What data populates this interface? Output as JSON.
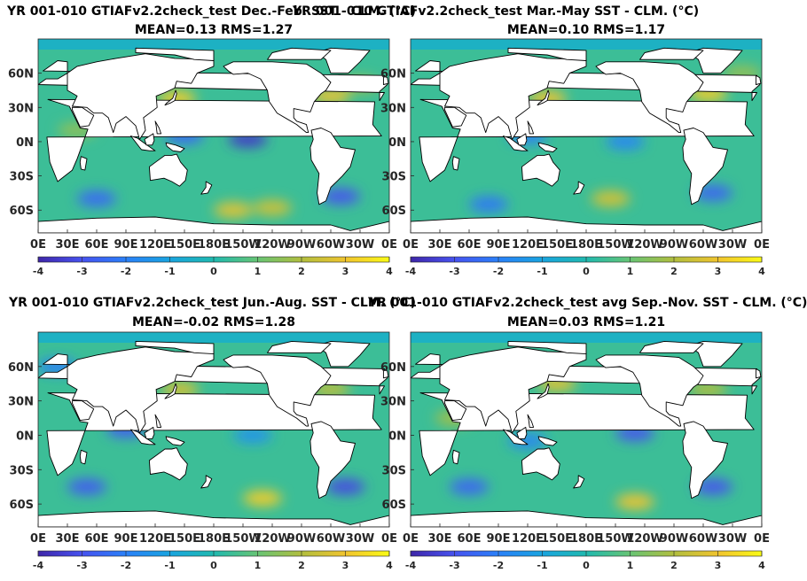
{
  "chart_data": [
    {
      "type": "heatmap",
      "title": "YR 001-010 GTIAFv2.2check_test  Dec.-Feb. SST - CLM. (°C)",
      "subtitle": "MEAN=0.13   RMS=1.27",
      "x_ticks": [
        "0E",
        "30E",
        "60E",
        "90E",
        "120E",
        "150E",
        "180E",
        "150W",
        "120W",
        "90W",
        "60W",
        "30W",
        "0E"
      ],
      "y_ticks": [
        "60N",
        "30N",
        "0N",
        "30S",
        "60S"
      ],
      "colorbar": {
        "min": -4,
        "max": 4,
        "ticks": [
          "-4",
          "-3",
          "-2",
          "-1",
          "0",
          "1",
          "2",
          "3",
          "4"
        ]
      },
      "colors": {
        "neg": "#3d2ea0",
        "mid": "#27a6b5",
        "pos": "#f5df2a"
      },
      "features": [
        {
          "lon": 215,
          "lat": 2,
          "value": -3.6
        },
        {
          "lon": 150,
          "lat": 5,
          "value": -2.5
        },
        {
          "lon": 142,
          "lat": 38,
          "value": 3.2
        },
        {
          "lon": 300,
          "lat": 40,
          "value": 3.0
        },
        {
          "lon": 330,
          "lat": 50,
          "value": 1.8
        },
        {
          "lon": 200,
          "lat": -60,
          "value": 2.8
        },
        {
          "lon": 240,
          "lat": -58,
          "value": 2.5
        },
        {
          "lon": 60,
          "lat": -50,
          "value": -2.5
        },
        {
          "lon": 310,
          "lat": -48,
          "value": -3.0
        },
        {
          "lon": 40,
          "lat": 10,
          "value": 1.5
        }
      ]
    },
    {
      "type": "heatmap",
      "title": "YR 001-010 GTIAFv2.2check_test Mar.-May SST - CLM. (°C)",
      "subtitle": "MEAN=0.10   RMS=1.17",
      "x_ticks": [
        "0E",
        "30E",
        "60E",
        "90E",
        "120E",
        "150E",
        "180E",
        "150W",
        "120W",
        "90W",
        "60W",
        "30W",
        "0E"
      ],
      "y_ticks": [
        "60N",
        "30N",
        "0N",
        "30S",
        "60S"
      ],
      "colorbar": {
        "min": -4,
        "max": 4,
        "ticks": [
          "-4",
          "-3",
          "-2",
          "-1",
          "0",
          "1",
          "2",
          "3",
          "4"
        ]
      },
      "colors": {
        "neg": "#3d2ea0",
        "mid": "#27a6b5",
        "pos": "#f5df2a"
      },
      "features": [
        {
          "lon": 140,
          "lat": 38,
          "value": 3.0
        },
        {
          "lon": 305,
          "lat": 42,
          "value": 3.2
        },
        {
          "lon": 220,
          "lat": 0,
          "value": -1.8
        },
        {
          "lon": 205,
          "lat": -50,
          "value": 2.6
        },
        {
          "lon": 80,
          "lat": -55,
          "value": -2.2
        },
        {
          "lon": 310,
          "lat": -45,
          "value": -2.6
        },
        {
          "lon": 120,
          "lat": 5,
          "value": -2.0
        },
        {
          "lon": 340,
          "lat": 60,
          "value": 1.6
        }
      ]
    },
    {
      "type": "heatmap",
      "title": "YR 001-010 GTIAFv2.2check_test Jun.-Aug. SST - CLM. (°C)",
      "subtitle": "MEAN=-0.02   RMS=1.28",
      "x_ticks": [
        "0E",
        "30E",
        "60E",
        "90E",
        "120E",
        "150E",
        "180E",
        "150W",
        "120W",
        "90W",
        "60W",
        "30W",
        "0E"
      ],
      "y_ticks": [
        "60N",
        "30N",
        "0N",
        "30S",
        "60S"
      ],
      "colorbar": {
        "min": -4,
        "max": 4,
        "ticks": [
          "-4",
          "-3",
          "-2",
          "-1",
          "0",
          "1",
          "2",
          "3",
          "4"
        ]
      },
      "colors": {
        "neg": "#3d2ea0",
        "mid": "#27a6b5",
        "pos": "#f5df2a"
      },
      "features": [
        {
          "lon": 145,
          "lat": 40,
          "value": 2.6
        },
        {
          "lon": 230,
          "lat": -55,
          "value": 3.2
        },
        {
          "lon": 90,
          "lat": 5,
          "value": -2.8
        },
        {
          "lon": 50,
          "lat": -45,
          "value": -2.8
        },
        {
          "lon": 315,
          "lat": -45,
          "value": -3.2
        },
        {
          "lon": 300,
          "lat": 40,
          "value": 2.2
        },
        {
          "lon": 220,
          "lat": 0,
          "value": -1.5
        },
        {
          "lon": 20,
          "lat": 60,
          "value": -2.0
        }
      ]
    },
    {
      "type": "heatmap",
      "title": "YR 001-010 GTIAFv2.2check_test avg Sep.-Nov. SST - CLM. (°C)",
      "subtitle": "MEAN=0.03   RMS=1.21",
      "x_ticks": [
        "0E",
        "30E",
        "60E",
        "90E",
        "120E",
        "150E",
        "180E",
        "150W",
        "120W",
        "90W",
        "60W",
        "30W",
        "0E"
      ],
      "y_ticks": [
        "60N",
        "30N",
        "0N",
        "30S",
        "60S"
      ],
      "colorbar": {
        "min": -4,
        "max": 4,
        "ticks": [
          "-4",
          "-3",
          "-2",
          "-1",
          "0",
          "1",
          "2",
          "3",
          "4"
        ]
      },
      "colors": {
        "neg": "#3d2ea0",
        "mid": "#27a6b5",
        "pos": "#f5df2a"
      },
      "features": [
        {
          "lon": 230,
          "lat": 2,
          "value": -3.0
        },
        {
          "lon": 150,
          "lat": 45,
          "value": 2.8
        },
        {
          "lon": 230,
          "lat": -58,
          "value": 3.0
        },
        {
          "lon": 310,
          "lat": -45,
          "value": -3.0
        },
        {
          "lon": 60,
          "lat": -45,
          "value": -2.6
        },
        {
          "lon": 305,
          "lat": 40,
          "value": 2.0
        },
        {
          "lon": 45,
          "lat": 15,
          "value": 1.8
        },
        {
          "lon": 120,
          "lat": -5,
          "value": -1.8
        }
      ]
    }
  ]
}
